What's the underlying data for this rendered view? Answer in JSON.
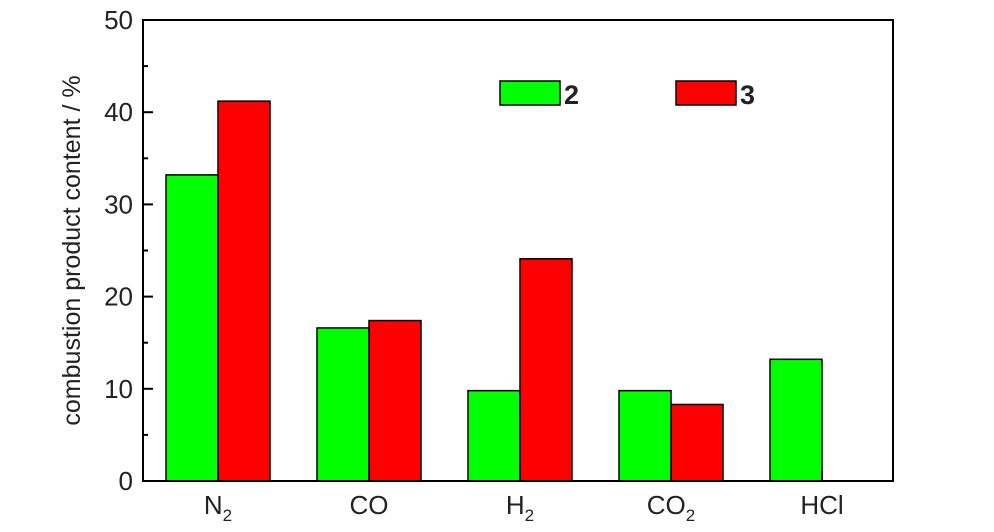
{
  "chart_data": {
    "type": "bar",
    "categories": [
      {
        "base": "N",
        "sub": "2"
      },
      {
        "base": "CO",
        "sub": ""
      },
      {
        "base": "H",
        "sub": "2"
      },
      {
        "base": "CO",
        "sub": "2"
      },
      {
        "base": "HCl",
        "sub": ""
      }
    ],
    "series": [
      {
        "name": "2",
        "color": "#00ff00",
        "values": [
          33.2,
          16.6,
          9.8,
          9.8,
          13.2
        ]
      },
      {
        "name": "3",
        "color": "#ff0000",
        "values": [
          41.2,
          17.4,
          24.1,
          8.3,
          0
        ]
      }
    ],
    "ylabel": "combustion product content / %",
    "ylim": [
      0,
      50
    ],
    "yticks": [
      0,
      10,
      20,
      30,
      40,
      50
    ],
    "grid": false,
    "legend_position": "top-right"
  }
}
